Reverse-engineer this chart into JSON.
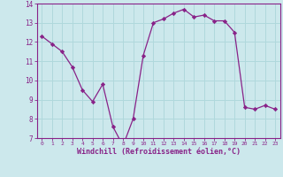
{
  "x": [
    0,
    1,
    2,
    3,
    4,
    5,
    6,
    7,
    8,
    9,
    10,
    11,
    12,
    13,
    14,
    15,
    16,
    17,
    18,
    19,
    20,
    21,
    22,
    23
  ],
  "y": [
    12.3,
    11.9,
    11.5,
    10.7,
    9.5,
    8.9,
    9.8,
    7.6,
    6.6,
    8.0,
    11.3,
    13.0,
    13.2,
    13.5,
    13.7,
    13.3,
    13.4,
    13.1,
    13.1,
    12.5,
    8.6,
    8.5,
    8.7,
    8.5
  ],
  "line_color": "#882288",
  "marker": "D",
  "marker_size": 2.2,
  "bg_color": "#cce8ec",
  "grid_color": "#b0d8dc",
  "xlabel": "Windchill (Refroidissement éolien,°C)",
  "xlabel_color": "#882288",
  "tick_color": "#882288",
  "ylim": [
    7,
    14
  ],
  "xlim": [
    -0.5,
    23.5
  ],
  "yticks": [
    7,
    8,
    9,
    10,
    11,
    12,
    13,
    14
  ],
  "xticks": [
    0,
    1,
    2,
    3,
    4,
    5,
    6,
    7,
    8,
    9,
    10,
    11,
    12,
    13,
    14,
    15,
    16,
    17,
    18,
    19,
    20,
    21,
    22,
    23
  ]
}
